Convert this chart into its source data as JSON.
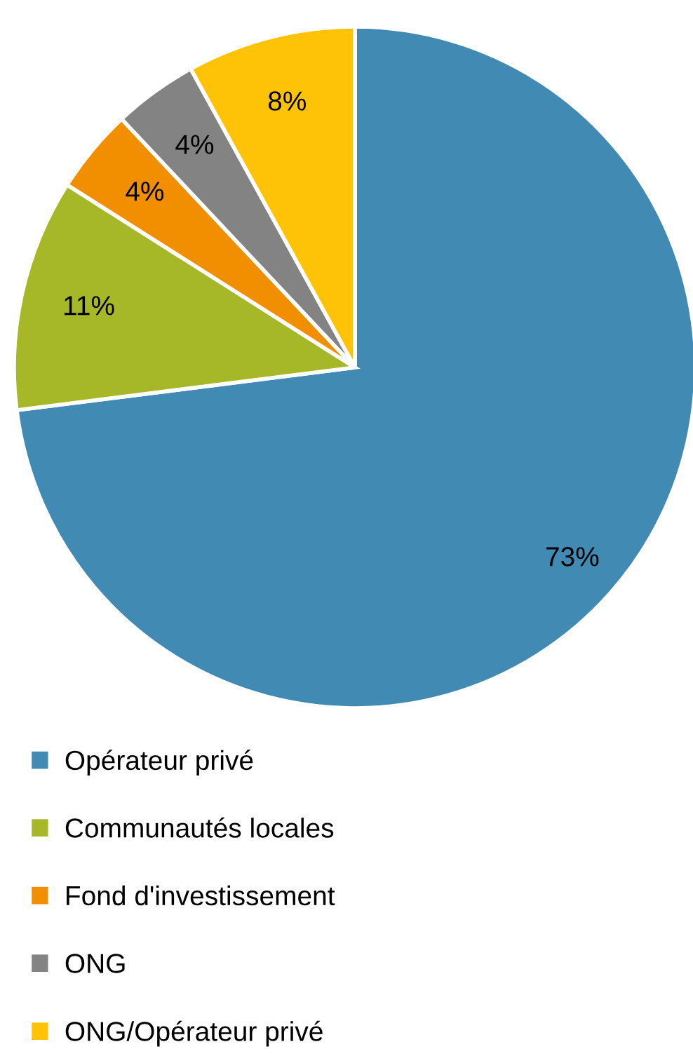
{
  "chart_data": {
    "type": "pie",
    "categories": [
      "Opérateur privé",
      "Communautés locales",
      "Fond d'investissement",
      "ONG",
      "ONG/Opérateur privé"
    ],
    "values": [
      73,
      11,
      4,
      4,
      8
    ],
    "colors": [
      "#418ab3",
      "#a6b727",
      "#f18f01",
      "#838383",
      "#fec306"
    ],
    "value_labels": [
      "73%",
      "11%",
      "4%",
      "4%",
      "8%"
    ],
    "legend": "bottom"
  }
}
